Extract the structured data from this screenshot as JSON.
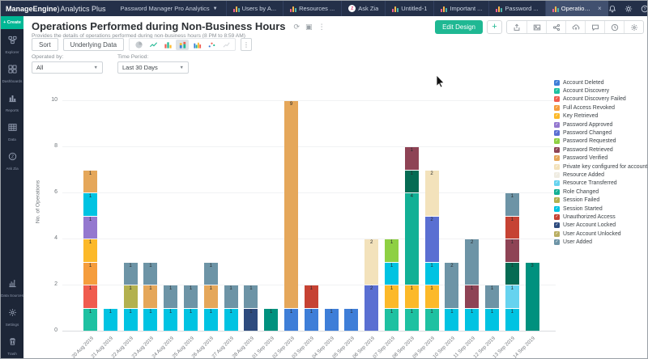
{
  "topnav": {
    "brand": "ManageEngine",
    "brand_paren": ")",
    "product": "Analytics Plus",
    "workspace": "Password Manager Pro Analytics",
    "tabs": [
      {
        "label": "Users by A...",
        "type": "report",
        "active": false
      },
      {
        "label": "Resources ...",
        "type": "report",
        "active": false
      },
      {
        "label": "Ask Zia",
        "type": "zia",
        "active": false
      },
      {
        "label": "Untitled-1",
        "type": "report",
        "active": false
      },
      {
        "label": "Important ...",
        "type": "report",
        "active": false
      },
      {
        "label": "Password ...",
        "type": "report",
        "active": false
      },
      {
        "label": "Operations...",
        "type": "report",
        "active": true,
        "closable": true
      }
    ]
  },
  "sidebar": {
    "create_label": "+ Create",
    "items": [
      {
        "id": "explorer",
        "label": "Explorer"
      },
      {
        "id": "dashboards",
        "label": "Dashboards"
      },
      {
        "id": "reports",
        "label": "Reports"
      },
      {
        "id": "data",
        "label": "Data"
      },
      {
        "id": "askzia",
        "label": "Ask Zia"
      }
    ],
    "items_bottom": [
      {
        "id": "datasources",
        "label": "Data Sources"
      },
      {
        "id": "settings",
        "label": "Settings"
      },
      {
        "id": "trash",
        "label": "Trash"
      }
    ]
  },
  "header": {
    "title": "Operations Performed during Non-Business Hours",
    "subtitle": "Provides the details of operations performed during non-business hours (8 PM to 8:59 AM)",
    "edit_design_label": "Edit Design",
    "add_label": "+"
  },
  "toolbar": {
    "sort_label": "Sort",
    "underlying_label": "Underlying Data"
  },
  "filters": {
    "operated_by": {
      "label": "Operated by:",
      "value": "All"
    },
    "time_period": {
      "label": "Time Period:",
      "value": "Last 30 Days"
    }
  },
  "chart_data": {
    "type": "bar",
    "variant": "stacked",
    "title": "Operations Performed during Non-Business Hours",
    "xlabel": "",
    "ylabel": "No. of Operations",
    "ylim": [
      0,
      10
    ],
    "yticks": [
      0,
      2,
      4,
      6,
      8,
      10
    ],
    "grid": true,
    "legend_position": "right",
    "palette": {
      "blue": "#3e7ed8",
      "emerald": "#1ec1a1",
      "salmon": "#f05c4e",
      "orange": "#f59d3d",
      "amber": "#fcb929",
      "purple": "#9478cf",
      "periwinkle": "#5a6fd2",
      "lime": "#8ed043",
      "maroon": "#8e4355",
      "tan": "#e5a75a",
      "cream": "#f3e2bb",
      "pale": "#efece2",
      "sky": "#66d3ef",
      "teal": "#12b095",
      "olive": "#b3b14f",
      "cyan": "#00c3e2",
      "darkgreen": "#056b53",
      "red": "#c64233",
      "navy": "#2e4b7e",
      "olivetan": "#b9ae62",
      "slate": "#6d94a6",
      "darkteal": "#00917e"
    },
    "legend": [
      {
        "label": "Account Deleted",
        "color": "#3e7ed8"
      },
      {
        "label": "Account Discovery",
        "color": "#1ec1a1"
      },
      {
        "label": "Account Discovery Failed",
        "color": "#f05c4e"
      },
      {
        "label": "Full Access Revoked",
        "color": "#f59d3d"
      },
      {
        "label": "Key Retrieved",
        "color": "#fcb929"
      },
      {
        "label": "Password Approved",
        "color": "#9478cf"
      },
      {
        "label": "Password Changed",
        "color": "#5a6fd2"
      },
      {
        "label": "Password Requested",
        "color": "#8ed043"
      },
      {
        "label": "Password Retrieved",
        "color": "#8e4355"
      },
      {
        "label": "Password Verified",
        "color": "#e5a75a"
      },
      {
        "label": "Private key configured for account",
        "color": "#f3e2bb"
      },
      {
        "label": "Resource Added",
        "color": "#efece2"
      },
      {
        "label": "Resource Transferred",
        "color": "#66d3ef"
      },
      {
        "label": "Role Changed",
        "color": "#12b095"
      },
      {
        "label": "Session Failed",
        "color": "#b3b14f"
      },
      {
        "label": "Session Started",
        "color": "#00c3e2"
      },
      {
        "label": "Unauthorized Access",
        "color": "#c64233"
      },
      {
        "label": "User Account Locked",
        "color": "#2e4b7e"
      },
      {
        "label": "User Account Unlocked",
        "color": "#b9ae62"
      },
      {
        "label": "User Added",
        "color": "#6d94a6"
      }
    ],
    "bars": [
      {
        "date": "20 Aug 2019",
        "total": 7,
        "segments": [
          {
            "c": "emerald",
            "v": 1
          },
          {
            "c": "salmon",
            "v": 1
          },
          {
            "c": "orange",
            "v": 1
          },
          {
            "c": "amber",
            "v": 1
          },
          {
            "c": "purple",
            "v": 1
          },
          {
            "c": "cyan",
            "v": 1
          },
          {
            "c": "tan",
            "v": 1
          }
        ]
      },
      {
        "date": "21 Aug 2019",
        "total": 1,
        "segments": [
          {
            "c": "cyan",
            "v": 1
          }
        ]
      },
      {
        "date": "22 Aug 2019",
        "total": 3,
        "segments": [
          {
            "c": "cyan",
            "v": 1
          },
          {
            "c": "olive",
            "v": 1
          },
          {
            "c": "slate",
            "v": 1
          }
        ]
      },
      {
        "date": "23 Aug 2019",
        "total": 3,
        "segments": [
          {
            "c": "cyan",
            "v": 1
          },
          {
            "c": "tan",
            "v": 1
          },
          {
            "c": "slate",
            "v": 1
          }
        ]
      },
      {
        "date": "24 Aug 2019",
        "total": 2,
        "segments": [
          {
            "c": "cyan",
            "v": 1
          },
          {
            "c": "slate",
            "v": 1
          }
        ]
      },
      {
        "date": "25 Aug 2019",
        "total": 2,
        "segments": [
          {
            "c": "cyan",
            "v": 1
          },
          {
            "c": "slate",
            "v": 1
          }
        ]
      },
      {
        "date": "26 Aug 2019",
        "total": 3,
        "segments": [
          {
            "c": "cyan",
            "v": 1
          },
          {
            "c": "tan",
            "v": 1
          },
          {
            "c": "slate",
            "v": 1
          }
        ]
      },
      {
        "date": "27 Aug 2019",
        "total": 2,
        "segments": [
          {
            "c": "cyan",
            "v": 1
          },
          {
            "c": "slate",
            "v": 1
          }
        ]
      },
      {
        "date": "28 Aug 2019",
        "total": 2,
        "segments": [
          {
            "c": "navy",
            "v": 1
          },
          {
            "c": "slate",
            "v": 1
          }
        ]
      },
      {
        "date": "01 Sep 2019",
        "total": 1,
        "segments": [
          {
            "c": "darkteal",
            "v": 1
          }
        ]
      },
      {
        "date": "02 Sep 2019",
        "total": 10,
        "segments": [
          {
            "c": "blue",
            "v": 1
          },
          {
            "c": "tan",
            "v": 9
          }
        ]
      },
      {
        "date": "03 Sep 2019",
        "total": 2,
        "segments": [
          {
            "c": "blue",
            "v": 1
          },
          {
            "c": "red",
            "v": 1
          }
        ]
      },
      {
        "date": "04 Sep 2019",
        "total": 1,
        "segments": [
          {
            "c": "blue",
            "v": 1
          }
        ]
      },
      {
        "date": "05 Sep 2019",
        "total": 1,
        "segments": [
          {
            "c": "blue",
            "v": 1
          }
        ]
      },
      {
        "date": "06 Sep 2019",
        "total": 4,
        "segments": [
          {
            "c": "periwinkle",
            "v": 2
          },
          {
            "c": "cream",
            "v": 2
          }
        ]
      },
      {
        "date": "07 Sep 2019",
        "total": 4,
        "segments": [
          {
            "c": "emerald",
            "v": 1
          },
          {
            "c": "amber",
            "v": 1
          },
          {
            "c": "cyan",
            "v": 1
          },
          {
            "c": "lime",
            "v": 1
          }
        ]
      },
      {
        "date": "08 Sep 2019",
        "total": 8,
        "segments": [
          {
            "c": "emerald",
            "v": 1
          },
          {
            "c": "amber",
            "v": 1
          },
          {
            "c": "teal",
            "v": 4
          },
          {
            "c": "darkgreen",
            "v": 1
          },
          {
            "c": "maroon",
            "v": 1
          }
        ]
      },
      {
        "date": "09 Sep 2019",
        "total": 7,
        "segments": [
          {
            "c": "emerald",
            "v": 1
          },
          {
            "c": "amber",
            "v": 1
          },
          {
            "c": "cyan",
            "v": 1
          },
          {
            "c": "periwinkle",
            "v": 2
          },
          {
            "c": "cream",
            "v": 2
          }
        ]
      },
      {
        "date": "10 Sep 2019",
        "total": 3,
        "segments": [
          {
            "c": "cyan",
            "v": 1
          },
          {
            "c": "slate",
            "v": 2
          }
        ]
      },
      {
        "date": "11 Sep 2019",
        "total": 4,
        "segments": [
          {
            "c": "cyan",
            "v": 1
          },
          {
            "c": "maroon",
            "v": 1
          },
          {
            "c": "slate",
            "v": 2
          }
        ]
      },
      {
        "date": "12 Sep 2019",
        "total": 2,
        "segments": [
          {
            "c": "cyan",
            "v": 1
          },
          {
            "c": "slate",
            "v": 1
          }
        ]
      },
      {
        "date": "13 Sep 2019",
        "total": 6,
        "segments": [
          {
            "c": "cyan",
            "v": 1
          },
          {
            "c": "sky",
            "v": 1
          },
          {
            "c": "darkgreen",
            "v": 1
          },
          {
            "c": "maroon",
            "v": 1
          },
          {
            "c": "red",
            "v": 1
          },
          {
            "c": "slate",
            "v": 1
          }
        ]
      },
      {
        "date": "14 Sep 2019",
        "total": 3,
        "segments": [
          {
            "c": "darkteal",
            "v": 3
          }
        ]
      }
    ]
  }
}
